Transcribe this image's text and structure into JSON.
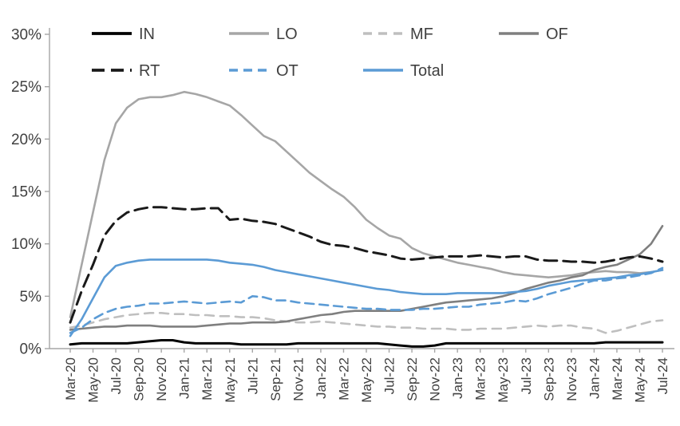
{
  "chart_data": {
    "type": "line",
    "title": "",
    "xlabel": "",
    "ylabel": "",
    "grid": false,
    "legend_position": "top",
    "x_tick_every": 2,
    "y_axis": {
      "min": 0,
      "max": 30,
      "step": 5,
      "tick_labels": [
        "0%",
        "5%",
        "10%",
        "15%",
        "20%",
        "25%",
        "30%"
      ]
    },
    "x": [
      "Mar-20",
      "Apr-20",
      "May-20",
      "Jun-20",
      "Jul-20",
      "Aug-20",
      "Sep-20",
      "Oct-20",
      "Nov-20",
      "Dec-20",
      "Jan-21",
      "Feb-21",
      "Mar-21",
      "Apr-21",
      "May-21",
      "Jun-21",
      "Jul-21",
      "Aug-21",
      "Sep-21",
      "Oct-21",
      "Nov-21",
      "Dec-21",
      "Jan-22",
      "Feb-22",
      "Mar-22",
      "Apr-22",
      "May-22",
      "Jun-22",
      "Jul-22",
      "Aug-22",
      "Sep-22",
      "Oct-22",
      "Nov-22",
      "Dec-22",
      "Jan-23",
      "Feb-23",
      "Mar-23",
      "Apr-23",
      "May-23",
      "Jun-23",
      "Jul-23",
      "Aug-23",
      "Sep-23",
      "Oct-23",
      "Nov-23",
      "Dec-23",
      "Jan-24",
      "Feb-24",
      "Mar-24",
      "Apr-24",
      "May-24",
      "Jun-24",
      "Jul-24"
    ],
    "legend_rows": [
      [
        "IN",
        "LO",
        "MF",
        "OF"
      ],
      [
        "RT",
        "OT",
        "Total"
      ]
    ],
    "series": [
      {
        "name": "IN",
        "color": "#000000",
        "style": "solid",
        "width": 3,
        "dash": "",
        "values": [
          0.4,
          0.5,
          0.5,
          0.5,
          0.5,
          0.5,
          0.6,
          0.7,
          0.8,
          0.8,
          0.6,
          0.5,
          0.5,
          0.5,
          0.5,
          0.4,
          0.4,
          0.4,
          0.4,
          0.4,
          0.5,
          0.5,
          0.5,
          0.5,
          0.5,
          0.5,
          0.5,
          0.5,
          0.4,
          0.3,
          0.2,
          0.2,
          0.3,
          0.5,
          0.5,
          0.5,
          0.5,
          0.5,
          0.5,
          0.5,
          0.5,
          0.5,
          0.5,
          0.5,
          0.5,
          0.5,
          0.5,
          0.6,
          0.6,
          0.6,
          0.6,
          0.6,
          0.6
        ]
      },
      {
        "name": "LO",
        "color": "#a6a6a6",
        "style": "solid",
        "width": 2.6,
        "dash": "",
        "values": [
          3.0,
          8.0,
          13.0,
          18.0,
          21.5,
          23.0,
          23.8,
          24.0,
          24.0,
          24.2,
          24.5,
          24.3,
          24.0,
          23.6,
          23.2,
          22.3,
          21.3,
          20.3,
          19.8,
          18.8,
          17.8,
          16.8,
          16.0,
          15.2,
          14.5,
          13.5,
          12.3,
          11.5,
          10.8,
          10.5,
          9.6,
          9.1,
          8.8,
          8.5,
          8.2,
          8.0,
          7.8,
          7.6,
          7.3,
          7.1,
          7.0,
          6.9,
          6.8,
          6.9,
          7.0,
          7.2,
          7.3,
          7.4,
          7.3,
          7.3,
          7.2,
          7.3,
          7.5
        ]
      },
      {
        "name": "MF",
        "color": "#bfbfbf",
        "style": "dashed",
        "width": 2.6,
        "dash": "11,8",
        "values": [
          2.0,
          2.2,
          2.5,
          2.8,
          3.0,
          3.2,
          3.3,
          3.4,
          3.4,
          3.3,
          3.3,
          3.2,
          3.2,
          3.1,
          3.1,
          3.0,
          3.0,
          2.9,
          2.7,
          2.6,
          2.5,
          2.5,
          2.6,
          2.5,
          2.4,
          2.3,
          2.2,
          2.1,
          2.1,
          2.0,
          2.0,
          1.9,
          1.9,
          1.9,
          1.8,
          1.8,
          1.9,
          1.9,
          1.9,
          2.0,
          2.1,
          2.2,
          2.1,
          2.2,
          2.2,
          2.0,
          1.9,
          1.5,
          1.7,
          2.0,
          2.3,
          2.6,
          2.7
        ]
      },
      {
        "name": "OF",
        "color": "#7f7f7f",
        "style": "solid",
        "width": 2.6,
        "dash": "",
        "values": [
          1.8,
          1.9,
          2.0,
          2.1,
          2.1,
          2.2,
          2.2,
          2.2,
          2.1,
          2.1,
          2.1,
          2.1,
          2.2,
          2.3,
          2.4,
          2.4,
          2.5,
          2.5,
          2.5,
          2.6,
          2.8,
          3.0,
          3.2,
          3.3,
          3.5,
          3.6,
          3.6,
          3.6,
          3.6,
          3.6,
          3.8,
          4.0,
          4.2,
          4.4,
          4.5,
          4.6,
          4.7,
          4.8,
          5.0,
          5.3,
          5.7,
          6.0,
          6.3,
          6.5,
          6.8,
          7.0,
          7.5,
          7.8,
          8.0,
          8.5,
          9.0,
          10.0,
          11.7
        ]
      },
      {
        "name": "RT",
        "color": "#1a1a1a",
        "style": "dashed",
        "width": 3,
        "dash": "16,8",
        "values": [
          2.5,
          5.5,
          8.0,
          10.8,
          12.2,
          13.0,
          13.3,
          13.5,
          13.5,
          13.4,
          13.3,
          13.3,
          13.4,
          13.4,
          12.3,
          12.4,
          12.2,
          12.1,
          11.9,
          11.5,
          11.1,
          10.7,
          10.2,
          9.9,
          9.8,
          9.6,
          9.3,
          9.1,
          8.9,
          8.6,
          8.5,
          8.6,
          8.7,
          8.8,
          8.8,
          8.8,
          8.9,
          8.8,
          8.7,
          8.8,
          8.8,
          8.5,
          8.4,
          8.4,
          8.3,
          8.3,
          8.2,
          8.3,
          8.5,
          8.7,
          8.8,
          8.6,
          8.3
        ]
      },
      {
        "name": "OT",
        "color": "#5b9bd5",
        "style": "dashed",
        "width": 2.6,
        "dash": "11,7",
        "values": [
          1.5,
          2.0,
          2.8,
          3.4,
          3.8,
          4.0,
          4.1,
          4.3,
          4.3,
          4.4,
          4.5,
          4.4,
          4.3,
          4.4,
          4.5,
          4.4,
          5.0,
          4.9,
          4.6,
          4.6,
          4.4,
          4.3,
          4.2,
          4.1,
          4.0,
          3.9,
          3.8,
          3.8,
          3.7,
          3.7,
          3.7,
          3.8,
          3.8,
          3.9,
          4.0,
          4.0,
          4.2,
          4.3,
          4.4,
          4.6,
          4.5,
          4.8,
          5.2,
          5.5,
          5.8,
          6.2,
          6.5,
          6.5,
          6.7,
          6.8,
          7.0,
          7.2,
          7.7
        ]
      },
      {
        "name": "Total",
        "color": "#5b9bd5",
        "style": "solid",
        "width": 2.6,
        "dash": "",
        "values": [
          1.2,
          2.8,
          4.8,
          6.8,
          7.9,
          8.2,
          8.4,
          8.5,
          8.5,
          8.5,
          8.5,
          8.5,
          8.5,
          8.4,
          8.2,
          8.1,
          8.0,
          7.8,
          7.5,
          7.3,
          7.1,
          6.9,
          6.7,
          6.5,
          6.3,
          6.1,
          5.9,
          5.7,
          5.6,
          5.4,
          5.3,
          5.2,
          5.2,
          5.2,
          5.3,
          5.3,
          5.3,
          5.3,
          5.3,
          5.4,
          5.5,
          5.7,
          6.0,
          6.2,
          6.4,
          6.5,
          6.6,
          6.7,
          6.8,
          7.0,
          7.1,
          7.3,
          7.5
        ]
      }
    ],
    "axis_color": "#a6a6a6",
    "label_color": "#404040"
  }
}
